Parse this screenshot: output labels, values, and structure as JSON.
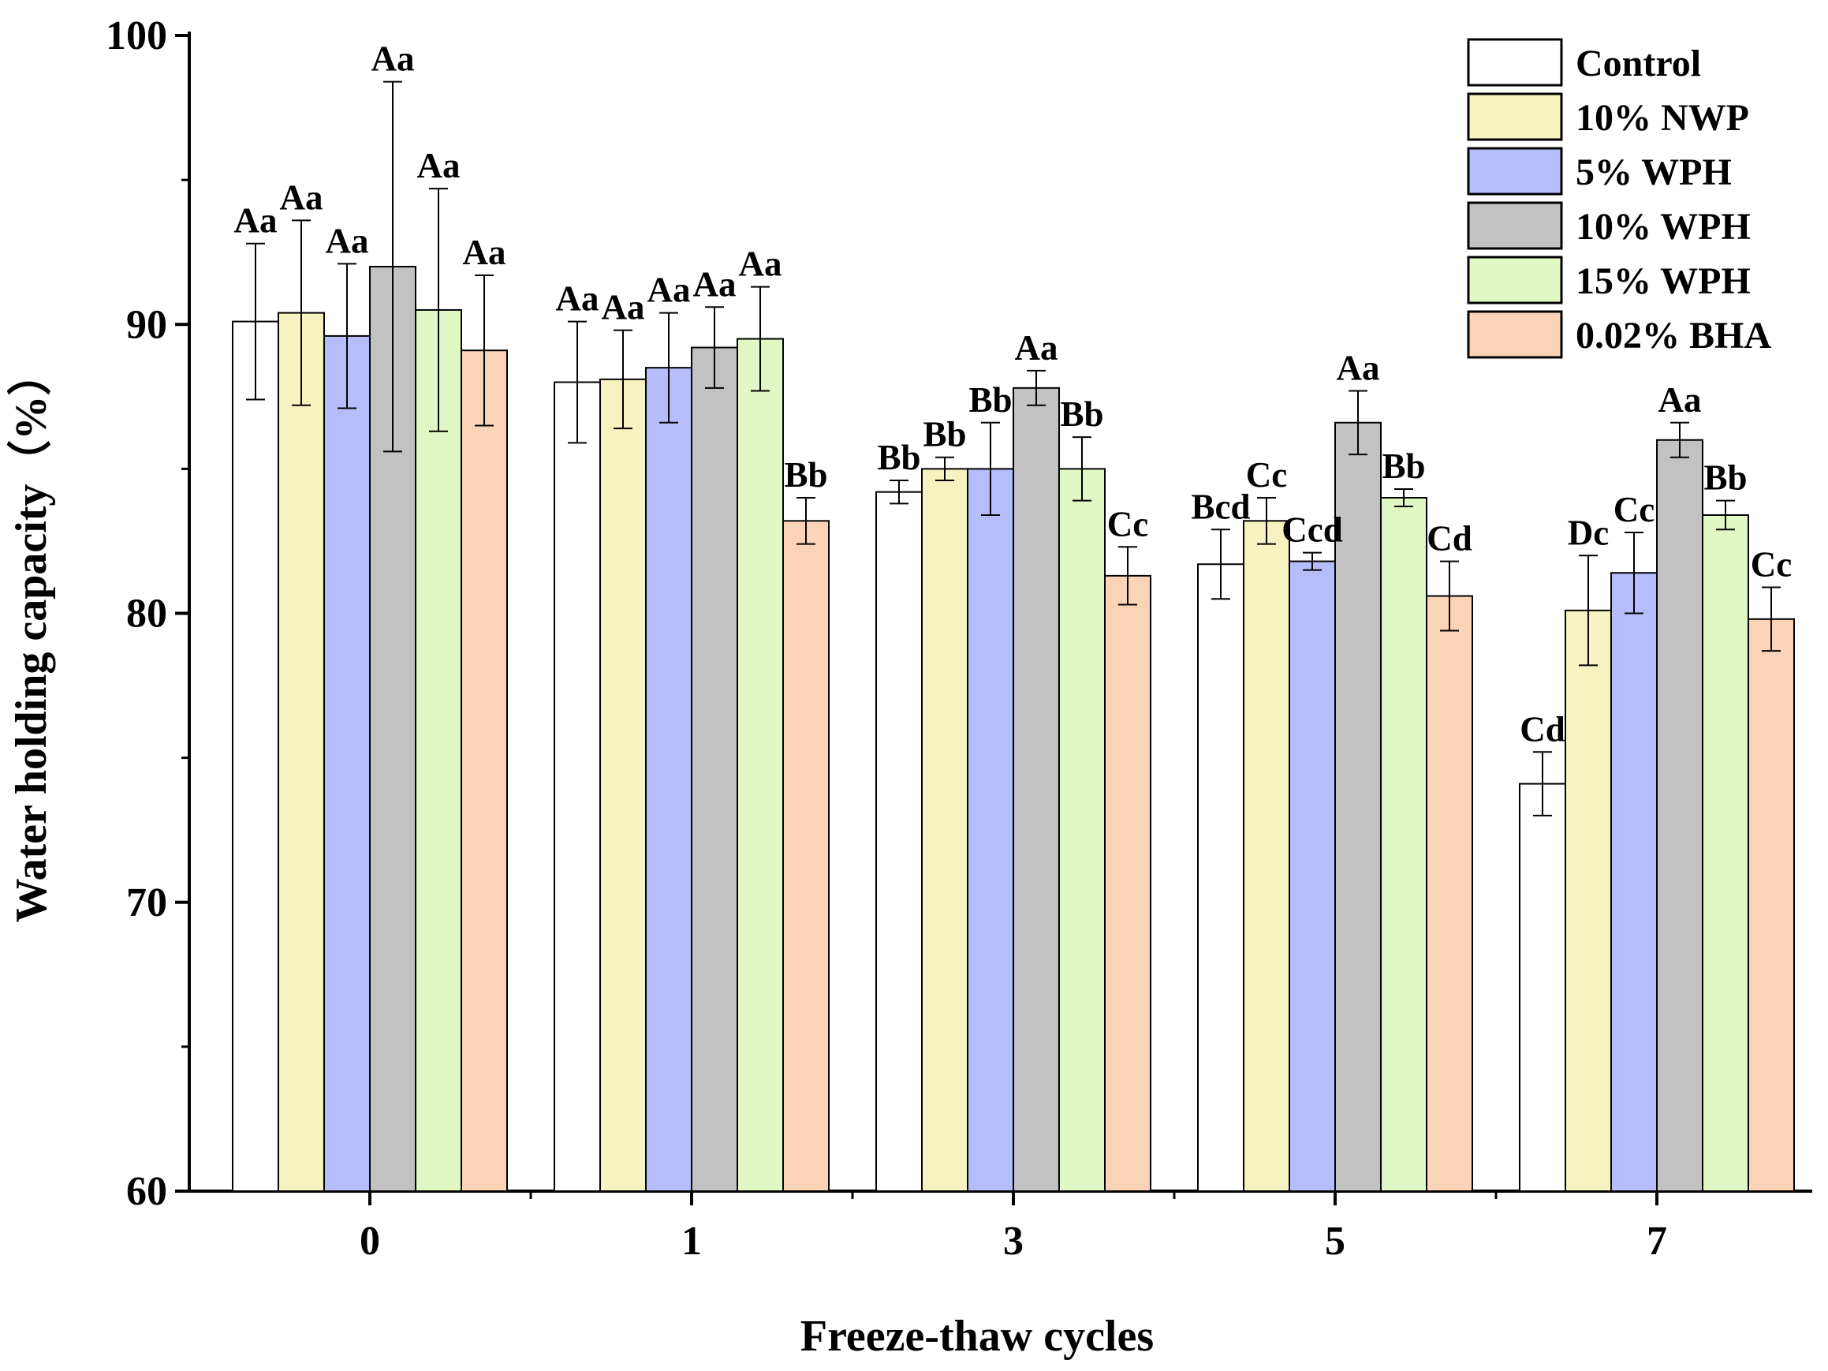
{
  "chart_data": {
    "type": "bar",
    "title": "",
    "xlabel": "Freeze-thaw cycles",
    "ylabel": "Water holding capacity（%）",
    "ylim": [
      60,
      100
    ],
    "yticks": [
      "60",
      "70",
      "80",
      "90",
      "100"
    ],
    "categories": [
      "0",
      "1",
      "3",
      "5",
      "7"
    ],
    "legend_position": "top-right",
    "series": [
      {
        "name": "Control",
        "color": "#ffffff",
        "values": [
          90.1,
          88.0,
          84.2,
          81.7,
          74.1
        ],
        "errors": [
          2.7,
          2.1,
          0.4,
          1.2,
          1.1
        ],
        "labels": [
          "Aa",
          "Aa",
          "Bb",
          "Bcd",
          "Cd"
        ]
      },
      {
        "name": "10% NWP",
        "color": "#f7f3c0",
        "values": [
          90.4,
          88.1,
          85.0,
          83.2,
          80.1
        ],
        "errors": [
          3.2,
          1.7,
          0.4,
          0.8,
          1.9
        ],
        "labels": [
          "Aa",
          "Aa",
          "Bb",
          "Cc",
          "Dc"
        ]
      },
      {
        "name": "5% WPH",
        "color": "#b6bdfb",
        "values": [
          89.6,
          88.5,
          85.0,
          81.8,
          81.4
        ],
        "errors": [
          2.5,
          1.9,
          1.6,
          0.3,
          1.4
        ],
        "labels": [
          "Aa",
          "Aa",
          "Bb",
          "Ccd",
          "Cc"
        ]
      },
      {
        "name": "10% WPH",
        "color": "#c2c2c2",
        "values": [
          92.0,
          89.2,
          87.8,
          86.6,
          86.0
        ],
        "errors": [
          6.4,
          1.4,
          0.6,
          1.1,
          0.6
        ],
        "labels": [
          "Aa",
          "Aa",
          "Aa",
          "Aa",
          "Aa"
        ]
      },
      {
        "name": "15% WPH",
        "color": "#e2f8c4",
        "values": [
          90.5,
          89.5,
          85.0,
          84.0,
          83.4
        ],
        "errors": [
          4.2,
          1.8,
          1.1,
          0.3,
          0.5
        ],
        "labels": [
          "Aa",
          "Aa",
          "Bb",
          "Bb",
          "Bb"
        ]
      },
      {
        "name": "0.02% BHA",
        "color": "#fbd3b6",
        "values": [
          89.1,
          83.2,
          81.3,
          80.6,
          79.8
        ],
        "errors": [
          2.6,
          0.8,
          1.0,
          1.2,
          1.1
        ],
        "labels": [
          "Aa",
          "Bb",
          "Cc",
          "Cd",
          "Cc"
        ]
      }
    ]
  }
}
